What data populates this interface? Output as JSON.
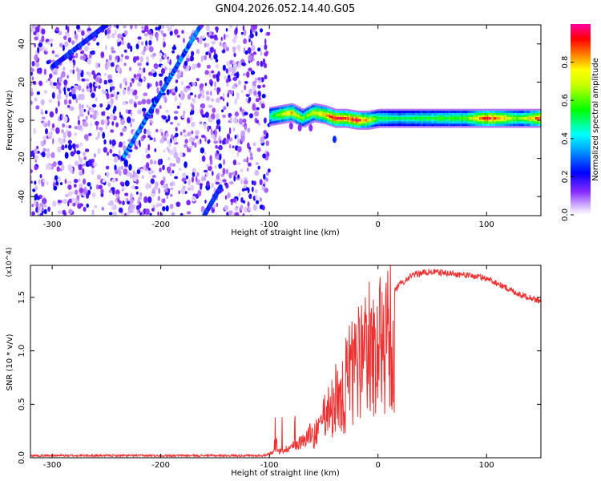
{
  "figure": {
    "title": "GN04.2026.052.14.40.G05"
  },
  "colorbar": {
    "label": "Normalized spectral amplitude",
    "range": [
      0,
      1
    ],
    "ticks": [
      0.0,
      0.2,
      0.4,
      0.6,
      0.8
    ],
    "tick_labels": [
      "0.0",
      "0.2",
      "0.4",
      "0.6",
      "0.8"
    ],
    "colormap": [
      "#ffffff",
      "#7a00ff",
      "#0000ff",
      "#00ffff",
      "#00ff00",
      "#ffff00",
      "#ff0000",
      "#ff00ff"
    ]
  },
  "chart_data": [
    {
      "type": "heatmap",
      "xlabel": "Height of straight line (km)",
      "ylabel": "Frequency (Hz)",
      "xlim": [
        -320,
        150
      ],
      "ylim": [
        -50,
        50
      ],
      "xticks": [
        -300,
        -200,
        -100,
        0,
        100
      ],
      "xtick_labels": [
        "-300",
        "-200",
        "-100",
        "0",
        "100"
      ],
      "yticks": [
        -40,
        -20,
        0,
        20,
        40
      ],
      "ytick_labels": [
        "-40",
        "-20",
        "0",
        "20",
        "40"
      ],
      "noise_region_x": [
        -320,
        -100
      ],
      "features": {
        "diagonal_streaks": [
          {
            "x_start": -235,
            "y_start": -20,
            "x_end": -165,
            "y_end": 48,
            "amplitude": 0.3
          },
          {
            "x_start": -300,
            "y_start": 28,
            "x_end": -250,
            "y_end": 50,
            "amplitude": 0.25
          },
          {
            "x_start": -160,
            "y_start": -50,
            "x_end": -145,
            "y_end": -35,
            "amplitude": 0.25
          }
        ],
        "main_band": {
          "x": [
            -100,
            -90,
            -80,
            -70,
            -60,
            -50,
            -40,
            -30,
            -20,
            -10,
            0,
            20,
            50,
            80,
            100,
            130,
            150
          ],
          "freq": [
            2,
            3,
            4,
            1,
            4,
            3,
            1,
            1,
            0,
            0,
            1,
            1,
            1,
            1,
            1,
            1,
            1
          ],
          "amplitude": [
            0.5,
            0.7,
            0.8,
            0.6,
            0.7,
            0.8,
            0.95,
            0.9,
            0.95,
            0.75,
            0.55,
            0.5,
            0.55,
            0.6,
            0.95,
            0.6,
            0.95
          ]
        }
      }
    },
    {
      "type": "line",
      "xlabel": "Height of straight line (km)",
      "ylabel": "SNR (10 * v/v)",
      "scale_label": "(x10^4)",
      "xlim": [
        -320,
        150
      ],
      "ylim": [
        0,
        1.8
      ],
      "xticks": [
        -300,
        -200,
        -100,
        0,
        100
      ],
      "xtick_labels": [
        "-300",
        "-200",
        "-100",
        "0",
        "100"
      ],
      "yticks": [
        0.0,
        0.5,
        1.0,
        1.5
      ],
      "ytick_labels": [
        "0.0",
        "0.5",
        "1.0",
        "1.5"
      ],
      "series": [
        {
          "name": "SNR",
          "color": "#ee3030",
          "envelope_x": [
            -320,
            -105,
            -100,
            -90,
            -80,
            -70,
            -60,
            -50,
            -45,
            -40,
            -35,
            -30,
            -25,
            -20,
            -15,
            -10,
            -5,
            0,
            10,
            20,
            30,
            40,
            50,
            60,
            80,
            100,
            110,
            120,
            130,
            140,
            150
          ],
          "envelope_y": [
            0.02,
            0.02,
            0.04,
            0.06,
            0.1,
            0.15,
            0.25,
            0.45,
            0.6,
            0.8,
            0.75,
            0.9,
            1.05,
            1.1,
            1.2,
            1.3,
            1.35,
            1.4,
            1.5,
            1.62,
            1.7,
            1.73,
            1.74,
            1.73,
            1.71,
            1.68,
            1.63,
            1.58,
            1.53,
            1.5,
            1.46
          ]
        }
      ]
    }
  ]
}
